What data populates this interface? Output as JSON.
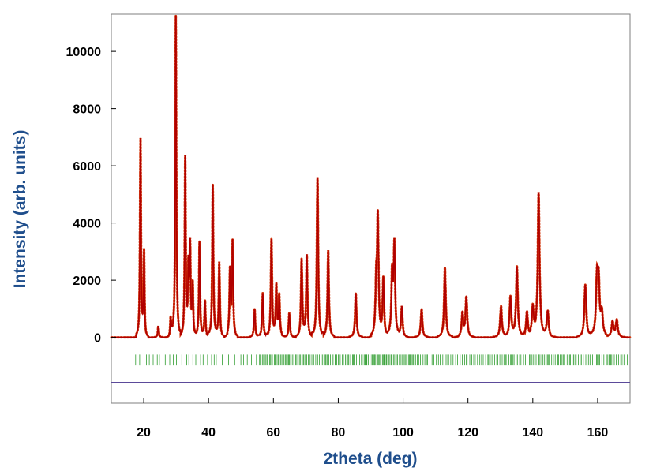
{
  "chart_data": {
    "type": "line",
    "title": "",
    "xlabel": "2theta (deg)",
    "ylabel": "Intensity (arb. units)",
    "xlim": [
      10,
      170
    ],
    "ylim": [
      -2300,
      11300
    ],
    "x_ticks": [
      "20",
      "40",
      "60",
      "80",
      "100",
      "120",
      "140",
      "160"
    ],
    "y_ticks": [
      "0",
      "2000",
      "4000",
      "6000",
      "8000",
      "10000"
    ],
    "grid": false,
    "legend": "none",
    "colors": {
      "observed": "#d4380d",
      "calculated": "#b00000",
      "difference": "#5b4a9a",
      "reflection_markers": "#2e9c2e",
      "axis_title": "#1f4e8c"
    },
    "series": [
      {
        "role": "calculated profile (line)",
        "peaks_x_y": [
          [
            19.0,
            6900
          ],
          [
            20.1,
            2950
          ],
          [
            24.5,
            400
          ],
          [
            28.3,
            750
          ],
          [
            29.9,
            11250
          ],
          [
            32.8,
            6250
          ],
          [
            33.8,
            2250
          ],
          [
            34.3,
            3100
          ],
          [
            35.1,
            1800
          ],
          [
            37.2,
            3350
          ],
          [
            38.9,
            1300
          ],
          [
            41.3,
            5350
          ],
          [
            43.3,
            2650
          ],
          [
            46.6,
            2300
          ],
          [
            47.4,
            3300
          ],
          [
            54.2,
            1000
          ],
          [
            56.7,
            1550
          ],
          [
            59.4,
            3400
          ],
          [
            60.9,
            1750
          ],
          [
            61.8,
            1450
          ],
          [
            64.9,
            850
          ],
          [
            68.7,
            2700
          ],
          [
            70.3,
            2850
          ],
          [
            73.6,
            5600
          ],
          [
            76.9,
            3050
          ],
          [
            85.4,
            1550
          ],
          [
            91.7,
            1750
          ],
          [
            92.2,
            4050
          ],
          [
            93.9,
            2050
          ],
          [
            96.6,
            2200
          ],
          [
            97.3,
            3200
          ],
          [
            99.6,
            1100
          ],
          [
            105.7,
            1000
          ],
          [
            112.9,
            2450
          ],
          [
            118.3,
            850
          ],
          [
            119.5,
            1400
          ],
          [
            130.2,
            1100
          ],
          [
            133.1,
            1400
          ],
          [
            135.1,
            2450
          ],
          [
            138.2,
            900
          ],
          [
            140.0,
            1000
          ],
          [
            141.8,
            5050
          ],
          [
            144.6,
            950
          ],
          [
            156.2,
            1850
          ],
          [
            159.8,
            1900
          ],
          [
            160.3,
            1750
          ],
          [
            161.3,
            800
          ],
          [
            164.6,
            550
          ],
          [
            165.9,
            600
          ]
        ]
      },
      {
        "role": "observed (dotted)",
        "same_peaks_as_calculated": true
      },
      {
        "role": "difference curve",
        "baseline_y": -1570
      },
      {
        "role": "Bragg reflection markers",
        "y_range": [
          -600,
          -980
        ],
        "x_range": [
          17.5,
          169.5
        ]
      }
    ]
  }
}
